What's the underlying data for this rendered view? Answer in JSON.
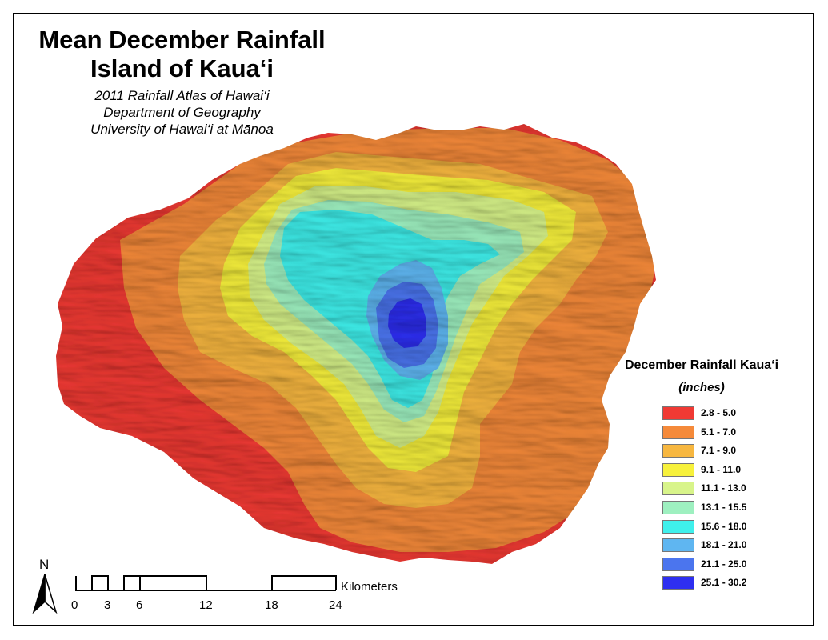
{
  "map": {
    "title_line1": "Mean December Rainfall",
    "title_line2": "Island of Kaua‘i",
    "subtitle_line1": "2011 Rainfall Atlas of Hawai‘i",
    "subtitle_line2": "Department of Geography",
    "subtitle_line3": "University of Hawai‘i at Mānoa"
  },
  "legend": {
    "title": "December Rainfall Kaua‘i",
    "unit": "(inches)",
    "items": [
      {
        "label": "2.8 - 5.0",
        "color": "#f03a34"
      },
      {
        "label": "5.1 - 7.0",
        "color": "#f58a3a"
      },
      {
        "label": "7.1 - 9.0",
        "color": "#f7b740"
      },
      {
        "label": "9.1 - 11.0",
        "color": "#f7f13c"
      },
      {
        "label": "11.1 - 13.0",
        "color": "#d8f48a"
      },
      {
        "label": "13.1 - 15.5",
        "color": "#9ef0c0"
      },
      {
        "label": "15.6 - 18.0",
        "color": "#3ff0ec"
      },
      {
        "label": "18.1 - 21.0",
        "color": "#5fb6f1"
      },
      {
        "label": "21.1 - 25.0",
        "color": "#4b75ee"
      },
      {
        "label": "25.1 - 30.2",
        "color": "#2e2ff0"
      }
    ]
  },
  "scale_bar": {
    "unit_label": "Kilometers",
    "ticks": [
      "0",
      "3",
      "6",
      "12",
      "18",
      "24"
    ]
  },
  "north_arrow": {
    "label": "N",
    "icon": "north-arrow-icon"
  }
}
